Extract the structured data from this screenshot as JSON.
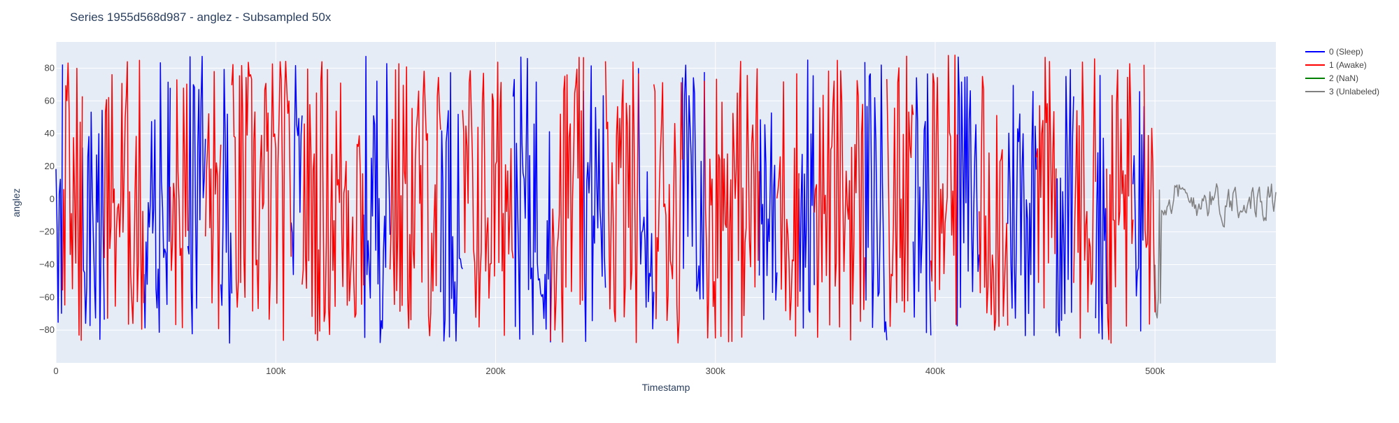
{
  "chart_data": {
    "type": "line",
    "title": "Series 1955d568d987 - anglez - Subsampled 50x",
    "xlabel": "Timestamp",
    "ylabel": "anglez",
    "xlim": [
      0,
      555000
    ],
    "ylim": [
      -100,
      96
    ],
    "grid": true,
    "legend_position": "top-right",
    "x_ticks": [
      {
        "value": 0,
        "label": "0"
      },
      {
        "value": 100000,
        "label": "100k"
      },
      {
        "value": 200000,
        "label": "200k"
      },
      {
        "value": 300000,
        "label": "300k"
      },
      {
        "value": 400000,
        "label": "400k"
      },
      {
        "value": 500000,
        "label": "500k"
      }
    ],
    "y_ticks": [
      {
        "value": 80,
        "label": "80"
      },
      {
        "value": 60,
        "label": "60"
      },
      {
        "value": 40,
        "label": "40"
      },
      {
        "value": 20,
        "label": "20"
      },
      {
        "value": 0,
        "label": "0"
      },
      {
        "value": -20,
        "label": "−20"
      },
      {
        "value": -40,
        "label": "−40"
      },
      {
        "value": -60,
        "label": "−60"
      },
      {
        "value": -80,
        "label": "−80"
      }
    ],
    "series": [
      {
        "name": "0 (Sleep)",
        "color": "#0000ff",
        "segments": [
          [
            0,
            3000
          ],
          [
            12000,
            22000
          ],
          [
            40000,
            52000
          ],
          [
            60000,
            68000
          ],
          [
            75000,
            80000
          ],
          [
            107000,
            112000
          ],
          [
            140000,
            152000
          ],
          [
            175000,
            185000
          ],
          [
            208000,
            225000
          ],
          [
            240000,
            250000
          ],
          [
            265000,
            272000
          ],
          [
            285000,
            295000
          ],
          [
            320000,
            328000
          ],
          [
            338000,
            345000
          ],
          [
            368000,
            378000
          ],
          [
            390000,
            398000
          ],
          [
            410000,
            420000
          ],
          [
            433000,
            446000
          ],
          [
            455000,
            463000
          ],
          [
            473000,
            478000
          ],
          [
            490000,
            495000
          ]
        ]
      },
      {
        "name": "1 (Awake)",
        "color": "#ff0000",
        "segments": [
          [
            3000,
            12000
          ],
          [
            22000,
            40000
          ],
          [
            52000,
            60000
          ],
          [
            68000,
            75000
          ],
          [
            80000,
            107000
          ],
          [
            112000,
            140000
          ],
          [
            152000,
            175000
          ],
          [
            185000,
            208000
          ],
          [
            225000,
            240000
          ],
          [
            250000,
            265000
          ],
          [
            272000,
            285000
          ],
          [
            295000,
            320000
          ],
          [
            328000,
            338000
          ],
          [
            345000,
            368000
          ],
          [
            378000,
            390000
          ],
          [
            398000,
            410000
          ],
          [
            420000,
            433000
          ],
          [
            446000,
            455000
          ],
          [
            463000,
            473000
          ],
          [
            478000,
            490000
          ],
          [
            495000,
            500000
          ]
        ]
      },
      {
        "name": "2 (NaN)",
        "color": "#008000",
        "segments": []
      },
      {
        "name": "3 (Unlabeled)",
        "color": "#808080",
        "segments": [
          [
            500000,
            555000
          ]
        ]
      }
    ]
  }
}
